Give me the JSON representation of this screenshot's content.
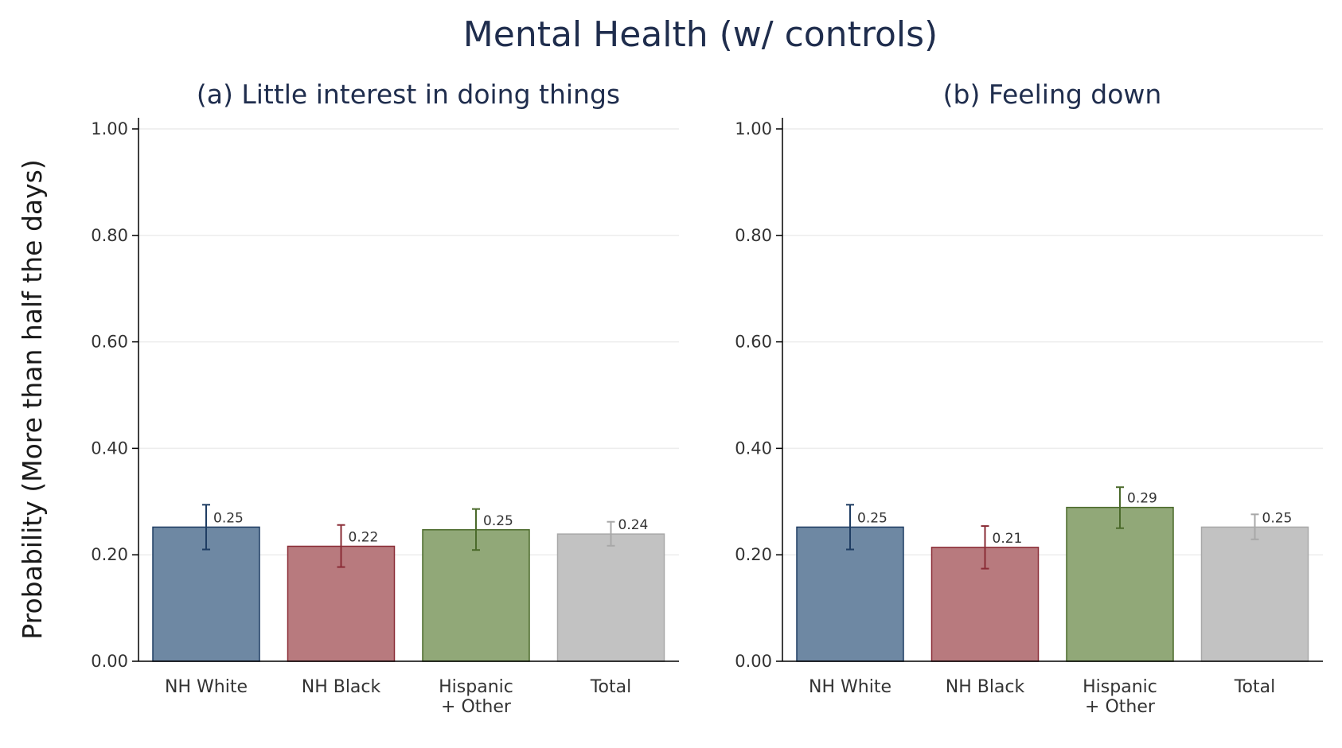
{
  "chart_data": {
    "type": "bar",
    "title": "Mental Health (w/ controls)",
    "ylabel": "Probability (More than half the days)",
    "ylim": [
      0,
      1
    ],
    "yticks": [
      0,
      0.2,
      0.4,
      0.6,
      0.8,
      1.0
    ],
    "ytick_labels": [
      "0.00",
      "0.20",
      "0.40",
      "0.60",
      "0.80",
      "1.00"
    ],
    "grid": true,
    "categories": [
      [
        "NH White"
      ],
      [
        "NH Black"
      ],
      [
        "Hispanic",
        "+ Other"
      ],
      [
        "Total"
      ]
    ],
    "colors": {
      "fill": [
        "#6e88a3",
        "#b87a7e",
        "#91a878",
        "#c2c2c2"
      ],
      "stroke": [
        "#1f3d63",
        "#8a2c36",
        "#4b6a2b",
        "#a8a8a8"
      ]
    },
    "panels": [
      {
        "title": "(a) Little interest in doing things",
        "values": [
          0.25,
          0.22,
          0.25,
          0.24
        ],
        "display": [
          0.252,
          0.216,
          0.247,
          0.239
        ],
        "ci_low": [
          0.21,
          0.177,
          0.209,
          0.217
        ],
        "ci_high": [
          0.294,
          0.256,
          0.286,
          0.262
        ],
        "labels": [
          "0.25",
          "0.22",
          "0.25",
          "0.24"
        ]
      },
      {
        "title": "(b) Feeling down",
        "values": [
          0.25,
          0.21,
          0.29,
          0.25
        ],
        "display": [
          0.252,
          0.214,
          0.289,
          0.252
        ],
        "ci_low": [
          0.21,
          0.174,
          0.25,
          0.229
        ],
        "ci_high": [
          0.294,
          0.254,
          0.327,
          0.276
        ],
        "labels": [
          "0.25",
          "0.21",
          "0.29",
          "0.25"
        ]
      }
    ]
  }
}
